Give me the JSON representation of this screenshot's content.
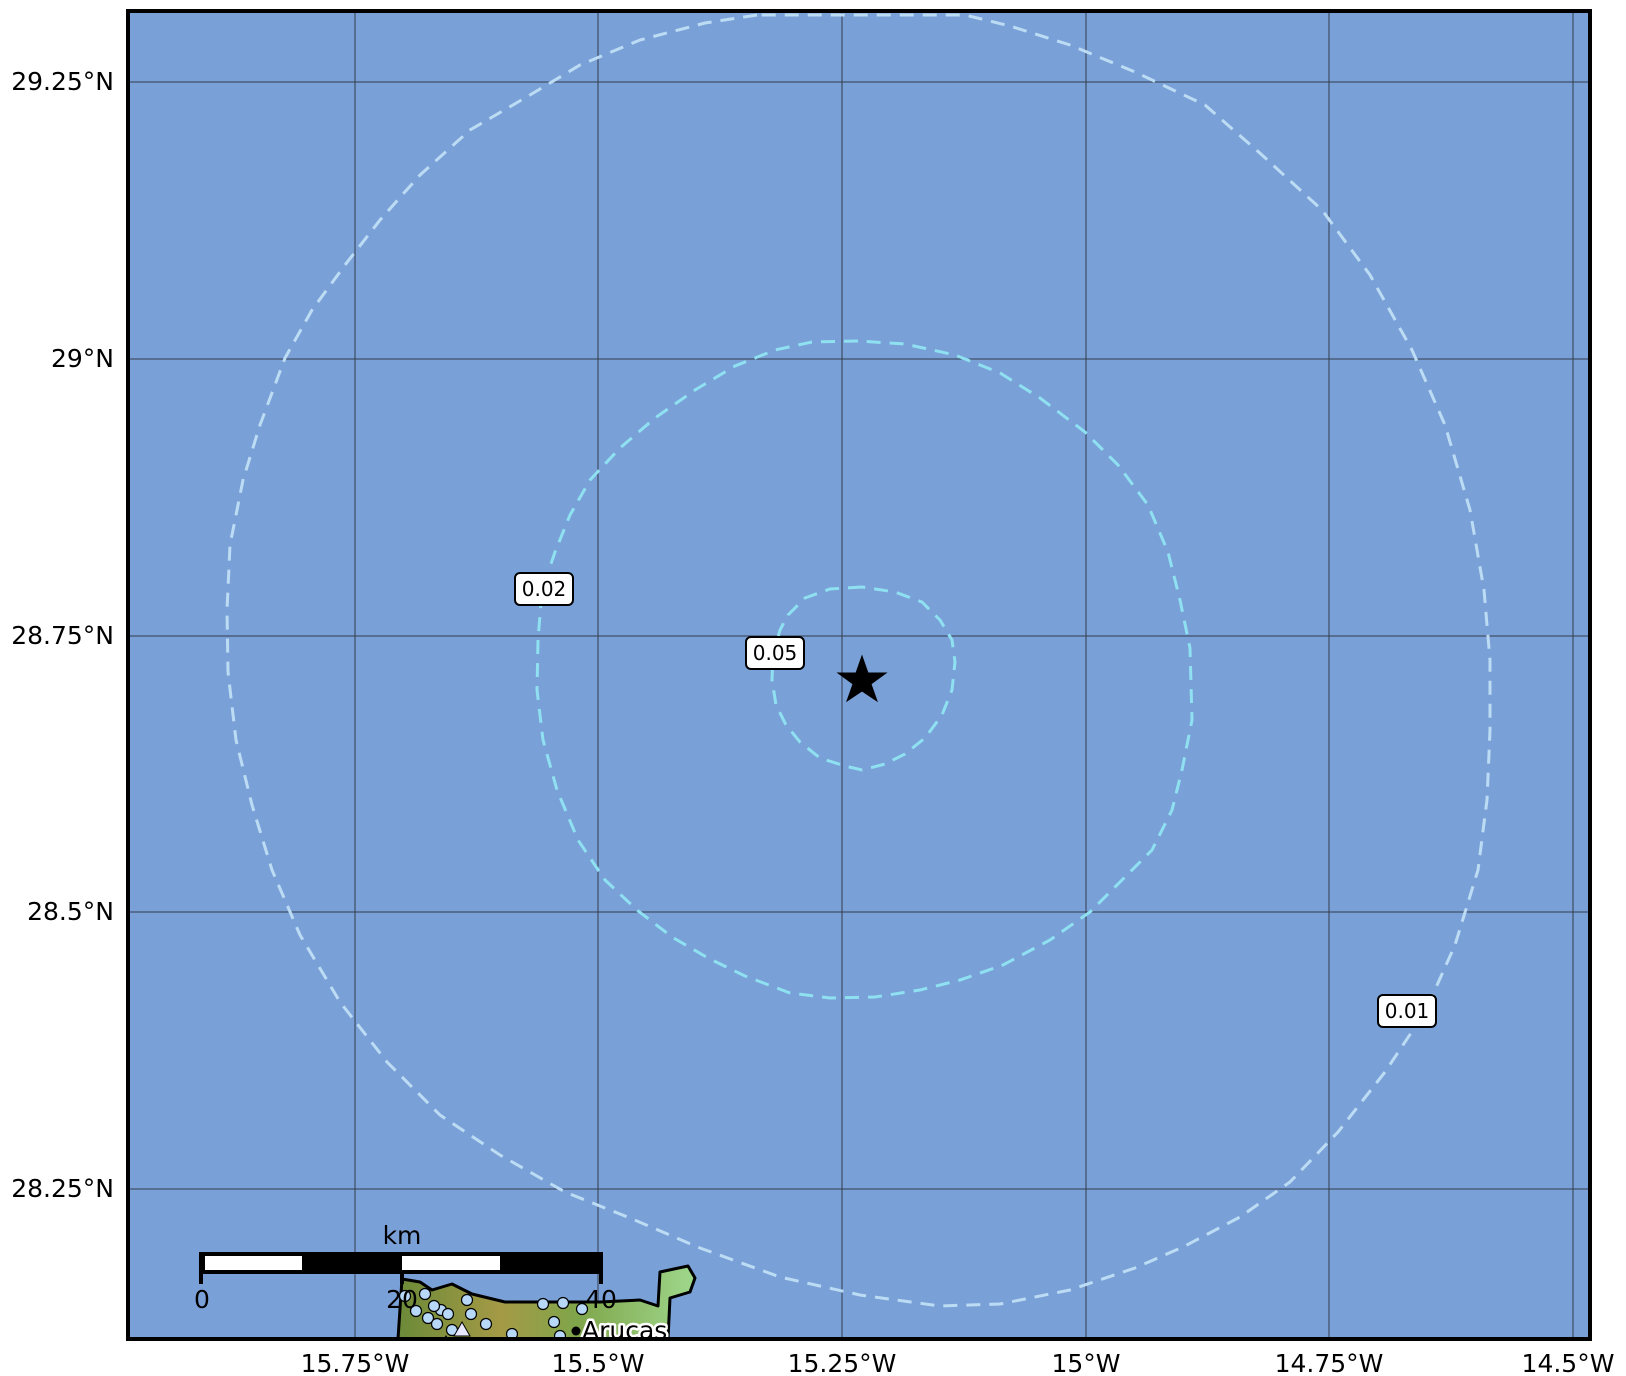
{
  "map": {
    "lat_labels": [
      "29.25°N",
      "29°N",
      "28.75°N",
      "28.5°N",
      "28.25°N"
    ],
    "lon_labels": [
      "15.75°W",
      "15.5°W",
      "15.25°W",
      "15°W",
      "14.75°W",
      "14.5°W"
    ],
    "ocean_color": "#7aa0d8",
    "contour_color_inner": "#8fe0f0",
    "contour_color_outer": "#bcdcf4",
    "contour_labels": [
      "0.05",
      "0.02",
      "0.01"
    ],
    "epicenter_marker": "star-icon",
    "scale_bar": {
      "unit": "km",
      "ticks": [
        "0",
        "20",
        "40"
      ]
    },
    "city": {
      "name": "Arucas"
    }
  }
}
